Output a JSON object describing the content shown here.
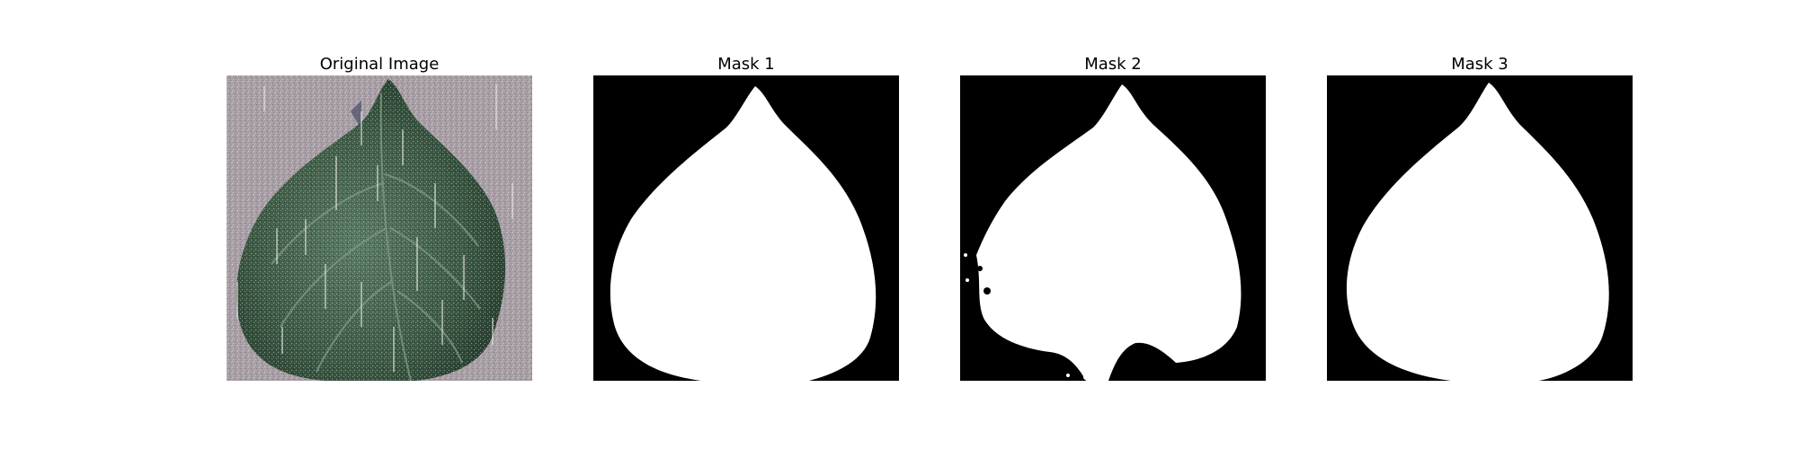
{
  "figure": {
    "panels": [
      {
        "title": "Original Image",
        "image": "leaf-photo"
      },
      {
        "title": "Mask 1",
        "image": "leaf-mask"
      },
      {
        "title": "Mask 2",
        "image": "leaf-mask-noisy"
      },
      {
        "title": "Mask 3",
        "image": "leaf-mask"
      }
    ]
  },
  "colors": {
    "background": "#ffffff",
    "mask_foreground": "#ffffff",
    "mask_background": "#000000",
    "leaf": "#3d5a45",
    "photo_background": "#a79fa5"
  }
}
